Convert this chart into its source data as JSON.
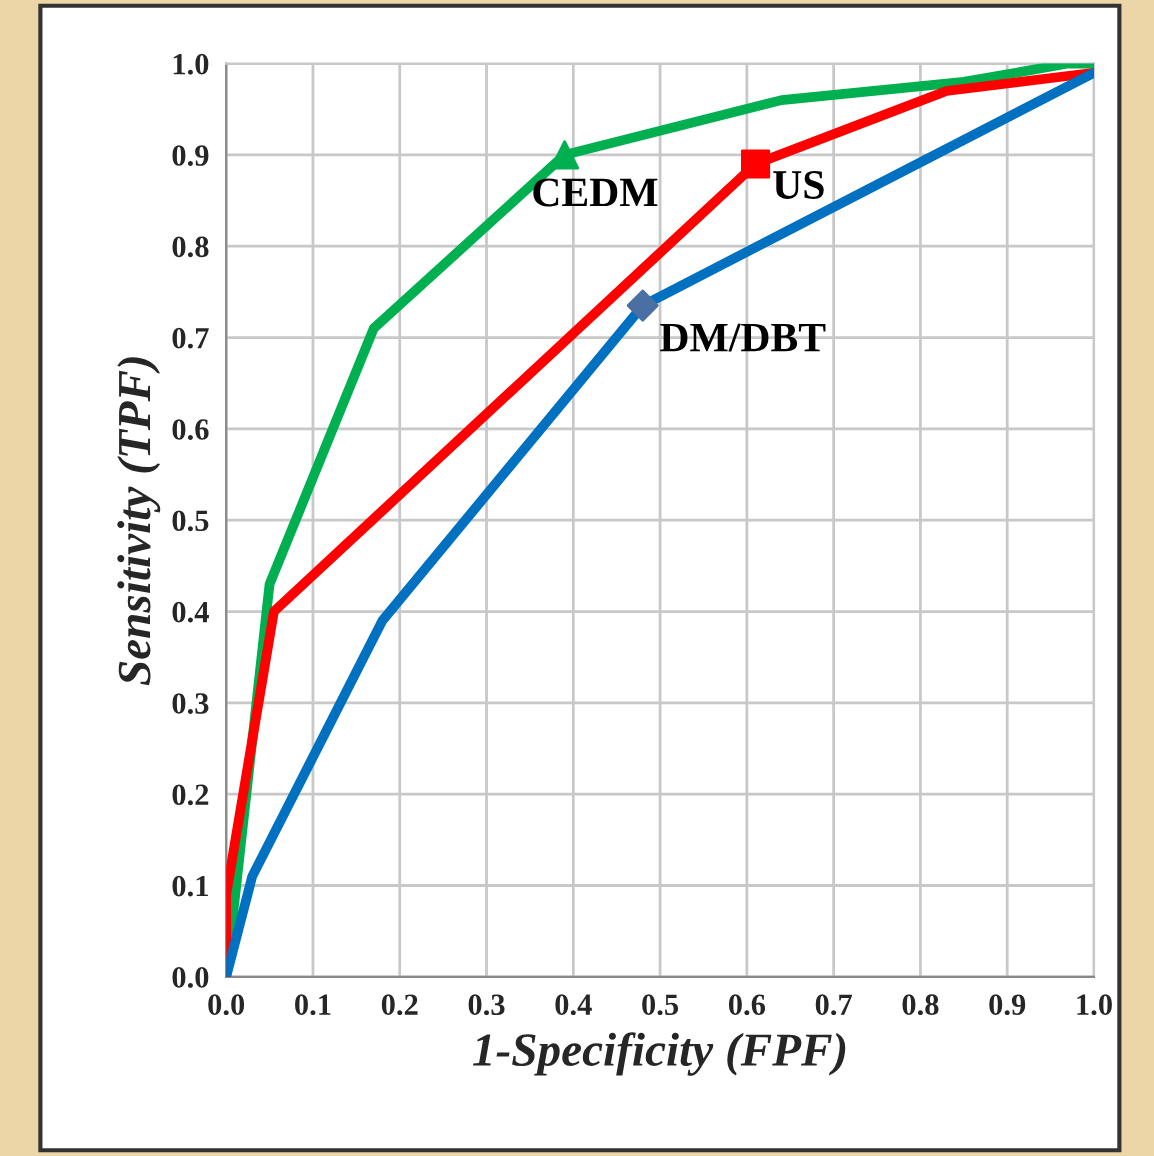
{
  "chart_data": {
    "type": "line",
    "xlabel": "1-Specificity (FPF)",
    "ylabel": "Sensitivity (TPF)",
    "xlim": [
      0,
      1
    ],
    "ylim": [
      0,
      1
    ],
    "xticks": [
      {
        "value": 0,
        "label": "0.0"
      },
      0.1,
      0.2,
      0.3,
      0.4,
      0.5,
      0.6,
      0.7,
      0.8,
      0.9,
      {
        "value": 1,
        "label": "1.0"
      }
    ],
    "yticks": [
      {
        "value": 0,
        "label": "0.0"
      },
      0.1,
      0.2,
      0.3,
      0.4,
      0.5,
      0.6,
      0.7,
      0.8,
      0.9,
      {
        "value": 1,
        "label": "1.0"
      }
    ],
    "grid": true,
    "legend": false,
    "line_style": "solid",
    "series": [
      {
        "color": "#00b050",
        "x": [
          0,
          0.05,
          0.17,
          0.39,
          0.64,
          0.85,
          0.97,
          1
        ],
        "values": [
          0,
          0.43,
          0.71,
          0.9,
          0.96,
          0.98,
          1.0,
          1.0
        ]
      },
      {
        "color": "#ff0000",
        "x": [
          0,
          0,
          0.055,
          0.61,
          0.83,
          1
        ],
        "values": [
          0,
          0.09,
          0.4,
          0.89,
          0.97,
          0.99
        ]
      },
      {
        "color": "#0070c0",
        "x": [
          0,
          0.03,
          0.18,
          0.48,
          1
        ],
        "values": [
          0,
          0.11,
          0.39,
          0.735,
          0.99
        ]
      },
      {
        "type": "scatter",
        "name": "CEDM",
        "color": "#00b050",
        "marker": "triangle",
        "x": [
          0.39
        ],
        "values": [
          0.9
        ]
      },
      {
        "type": "scatter",
        "name": "US",
        "color": "#ff0000",
        "marker": "square",
        "x": [
          0.61
        ],
        "values": [
          0.89
        ]
      },
      {
        "type": "scatter",
        "name": "DM/DBT",
        "color": "#4a6fa5",
        "marker": "diamond",
        "x": [
          0.48
        ],
        "values": [
          0.735
        ]
      }
    ]
  }
}
